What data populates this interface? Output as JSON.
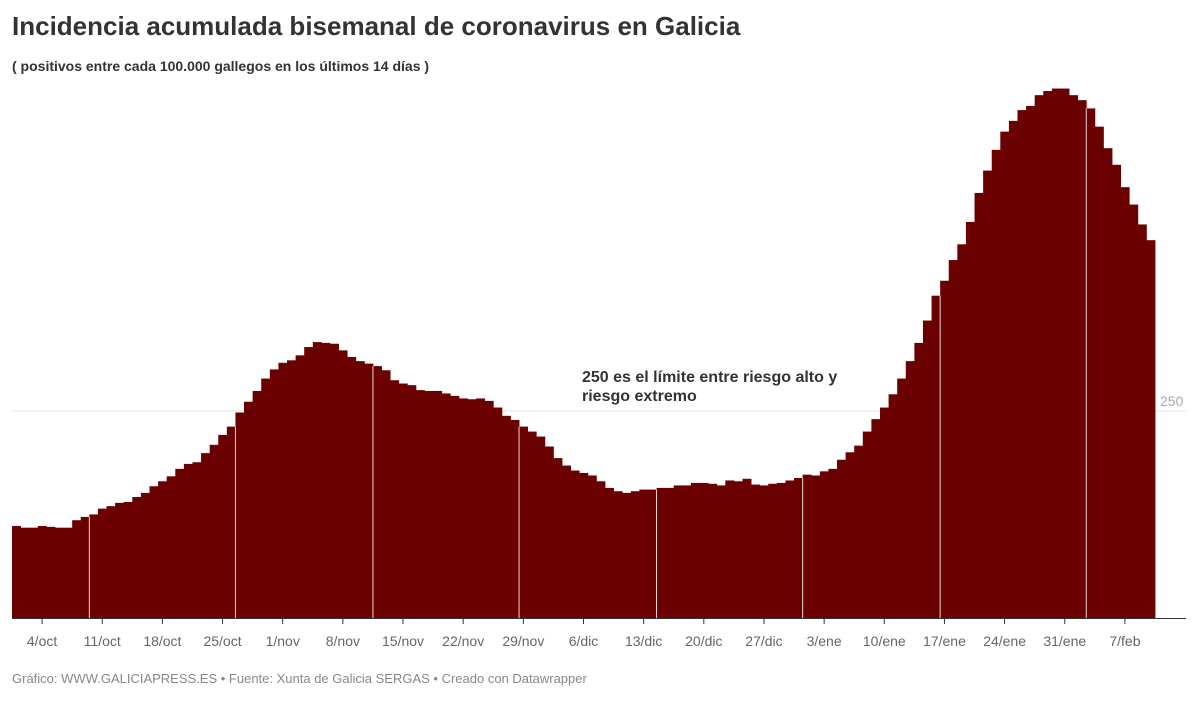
{
  "title": "Incidencia acumulada bisemanal de coronavirus en Galicia",
  "subtitle": "( positivos entre cada 100.000 gallegos en los últimos 14 días )",
  "footer": "Gráfico: WWW.GALICIAPRESS.ES • Fuente: Xunta de Galicia SERGAS • Creado con Datawrapper",
  "chart_data": {
    "type": "bar",
    "title": "Incidencia acumulada bisemanal de coronavirus en Galicia",
    "subtitle": "( positivos entre cada 100.000 gallegos en los últimos 14 días )",
    "xlabel": "",
    "ylabel": "",
    "ylim": [
      0,
      700
    ],
    "grid": "horizontal line at 250 only",
    "bar_color": "#6b0000",
    "y_ticks": [
      {
        "value": 250,
        "label": "250"
      }
    ],
    "x_ticks": [
      "4/oct",
      "11/oct",
      "18/oct",
      "25/oct",
      "1/nov",
      "8/nov",
      "15/nov",
      "22/nov",
      "29/nov",
      "6/dic",
      "13/dic",
      "20/dic",
      "27/dic",
      "3/ene",
      "10/ene",
      "17/ene",
      "24/ene",
      "31/ene",
      "7/feb"
    ],
    "annotation": {
      "lines": [
        "250 es el límite entre riesgo alto y",
        "riesgo extremo"
      ],
      "at_value": 250
    },
    "categories": [
      "1/oct",
      "2/oct",
      "3/oct",
      "4/oct",
      "5/oct",
      "6/oct",
      "7/oct",
      "8/oct",
      "9/oct",
      "10/oct",
      "11/oct",
      "12/oct",
      "13/oct",
      "14/oct",
      "15/oct",
      "16/oct",
      "17/oct",
      "18/oct",
      "19/oct",
      "20/oct",
      "21/oct",
      "22/oct",
      "23/oct",
      "24/oct",
      "25/oct",
      "26/oct",
      "27/oct",
      "28/oct",
      "29/oct",
      "30/oct",
      "31/oct",
      "1/nov",
      "2/nov",
      "3/nov",
      "4/nov",
      "5/nov",
      "6/nov",
      "7/nov",
      "8/nov",
      "9/nov",
      "10/nov",
      "11/nov",
      "12/nov",
      "13/nov",
      "14/nov",
      "15/nov",
      "16/nov",
      "17/nov",
      "18/nov",
      "19/nov",
      "20/nov",
      "21/nov",
      "22/nov",
      "23/nov",
      "24/nov",
      "25/nov",
      "26/nov",
      "27/nov",
      "28/nov",
      "29/nov",
      "30/nov",
      "1/dic",
      "2/dic",
      "3/dic",
      "4/dic",
      "5/dic",
      "6/dic",
      "7/dic",
      "8/dic",
      "9/dic",
      "10/dic",
      "11/dic",
      "12/dic",
      "13/dic",
      "14/dic",
      "15/dic",
      "16/dic",
      "17/dic",
      "18/dic",
      "19/dic",
      "20/dic",
      "21/dic",
      "22/dic",
      "23/dic",
      "24/dic",
      "25/dic",
      "26/dic",
      "27/dic",
      "28/dic",
      "29/dic",
      "30/dic",
      "31/dic",
      "1/ene",
      "2/ene",
      "3/ene",
      "4/ene",
      "5/ene",
      "6/ene",
      "7/ene",
      "8/ene",
      "9/ene",
      "10/ene",
      "11/ene",
      "12/ene",
      "13/ene",
      "14/ene",
      "15/ene",
      "16/ene",
      "17/ene",
      "18/ene",
      "19/ene",
      "20/ene",
      "21/ene",
      "22/ene",
      "23/ene",
      "24/ene",
      "25/ene",
      "26/ene",
      "27/ene",
      "28/ene",
      "29/ene",
      "30/ene",
      "31/ene",
      "1/feb",
      "2/feb",
      "3/feb",
      "4/feb",
      "5/feb",
      "6/feb",
      "7/feb",
      "8/feb",
      "9/feb",
      "10/feb"
    ],
    "values": [
      111,
      109,
      109,
      111,
      110,
      109,
      109,
      118,
      122,
      125,
      132,
      135,
      139,
      140,
      146,
      151,
      159,
      165,
      171,
      180,
      186,
      188,
      199,
      209,
      221,
      231,
      248,
      261,
      274,
      289,
      300,
      308,
      311,
      317,
      327,
      333,
      332,
      331,
      323,
      315,
      310,
      307,
      304,
      299,
      287,
      283,
      281,
      275,
      274,
      274,
      271,
      268,
      265,
      264,
      265,
      262,
      254,
      244,
      239,
      231,
      225,
      219,
      207,
      193,
      184,
      178,
      175,
      172,
      165,
      157,
      153,
      151,
      153,
      155,
      155,
      157,
      157,
      160,
      160,
      163,
      163,
      162,
      160,
      166,
      165,
      168,
      161,
      160,
      162,
      163,
      166,
      169,
      173,
      172,
      177,
      180,
      191,
      200,
      208,
      225,
      240,
      254,
      270,
      289,
      310,
      332,
      359,
      389,
      407,
      432,
      451,
      478,
      513,
      540,
      565,
      587,
      600,
      613,
      618,
      631,
      636,
      639,
      639,
      631,
      625,
      615,
      593,
      567,
      547,
      520,
      499,
      475,
      456
    ]
  }
}
